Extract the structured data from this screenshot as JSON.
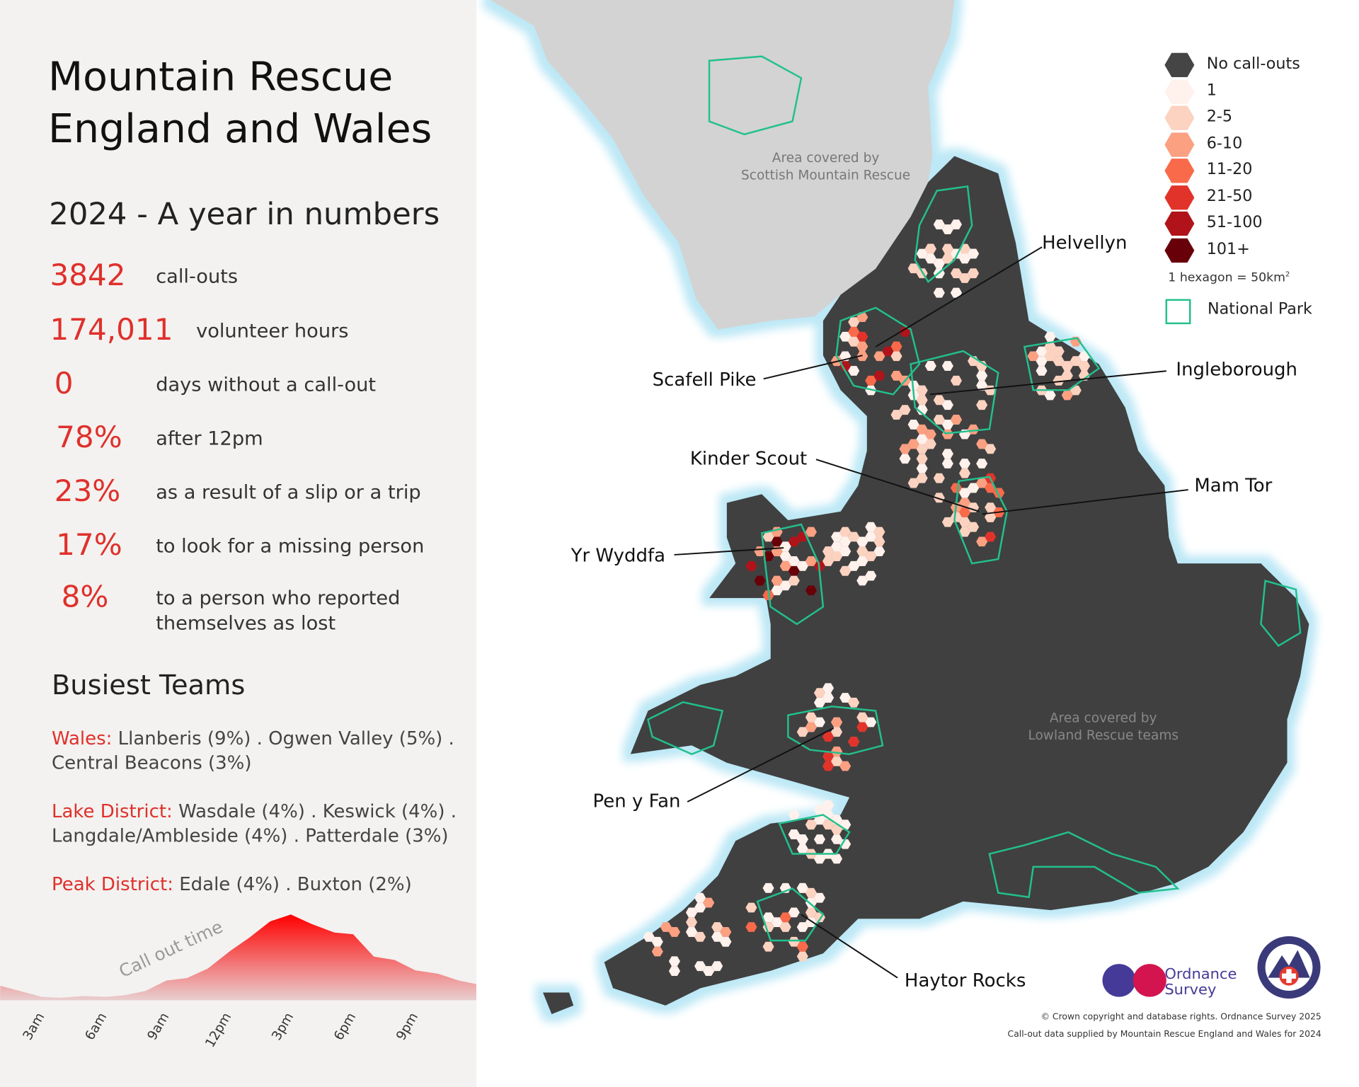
{
  "panel": {
    "title_line1": "Mountain Rescue",
    "title_line2": "England and Wales",
    "subtitle": "2024 - A year in numbers",
    "stats": [
      {
        "value": "3842",
        "label": "call-outs"
      },
      {
        "value": "174,011",
        "label": "volunteer hours"
      },
      {
        "value": "0",
        "label": "days without a call-out"
      },
      {
        "value": "78%",
        "label": "after 12pm"
      },
      {
        "value": "23%",
        "label": "as a result of a slip or a trip"
      },
      {
        "value": "17%",
        "label": "to look for a missing person"
      },
      {
        "value": "8%",
        "label": "to a person who reported",
        "label2": "themselves as lost"
      }
    ],
    "busiest_title": "Busiest Teams",
    "teams": [
      {
        "region": "Wales:",
        "line1": " Llanberis (9%) . Ogwen Valley (5%) .",
        "line2": "Central Beacons (3%)"
      },
      {
        "region": "Lake District:",
        "line1": " Wasdale (4%) . Keswick (4%) .",
        "line2": "Langdale/Ambleside (4%) . Patterdale (3%)"
      },
      {
        "region": "Peak District:",
        "line1": " Edale (4%) . Buxton (2%)",
        "line2": ""
      }
    ]
  },
  "chart_data": {
    "type": "area",
    "title": "Call out time",
    "x_tick_labels": [
      "3am",
      "6am",
      "9am",
      "12pm",
      "3pm",
      "6pm",
      "9pm"
    ],
    "x_ticks_hour": [
      3,
      6,
      9,
      12,
      15,
      18,
      21
    ],
    "x_hour": [
      1.2,
      3.2,
      4.1,
      5.2,
      6.3,
      7.2,
      8.2,
      9.2,
      10.2,
      11.2,
      12.3,
      13.2,
      14.2,
      15.2,
      16.2,
      17.3,
      18.2,
      19.2,
      20.2,
      21.2,
      22.3,
      23.3,
      24.2
    ],
    "relative_callouts_pct_of_peak": [
      17,
      4,
      3,
      5,
      4,
      6,
      11,
      23,
      26,
      37,
      58,
      73,
      92,
      100,
      89,
      79,
      77,
      51,
      47,
      35,
      31,
      23,
      19
    ],
    "fill_color_top": "#ff0000",
    "fill_color_bottom": "#e9cfd0"
  },
  "map": {
    "scotland_note_line1": "Area covered by",
    "scotland_note_line2": "Scottish Mountain Rescue",
    "lowland_note_line1": "Area covered by",
    "lowland_note_line2": "Lowland Rescue teams",
    "places": [
      "Helvellyn",
      "Scafell Pike",
      "Ingleborough",
      "Kinder Scout",
      "Mam Tor",
      "Yr Wyddfa",
      "Pen y Fan",
      "Haytor Rocks"
    ],
    "colors": {
      "no_callouts": "#3f3f3f",
      "scotland": "#d3d3d3",
      "coast_glow": "#bde8f6",
      "national_park": "#22c08e"
    }
  },
  "legend": {
    "items": [
      {
        "label": "No call-outs",
        "color": "#454545"
      },
      {
        "label": "1",
        "color": "#fff1ec"
      },
      {
        "label": "2-5",
        "color": "#fcd2c0"
      },
      {
        "label": "6-10",
        "color": "#fca082"
      },
      {
        "label": "11-20",
        "color": "#f96a4a"
      },
      {
        "label": "21-50",
        "color": "#e2332a"
      },
      {
        "label": "51-100",
        "color": "#b0141a"
      },
      {
        "label": "101+",
        "color": "#680009"
      }
    ],
    "hex_note": "1 hexagon = 50km",
    "hex_note_sup": "2",
    "park_label": "National Park"
  },
  "credits": {
    "os_logo": "Ordnance Survey",
    "mr_logo": "MOUNTAIN RESCUE ENGLAND & WALES",
    "line1": "© Crown copyright and database rights. Ordnance Survey 2025",
    "line2": "Call-out data supplied by Mountain Rescue England and Wales for 2024"
  }
}
